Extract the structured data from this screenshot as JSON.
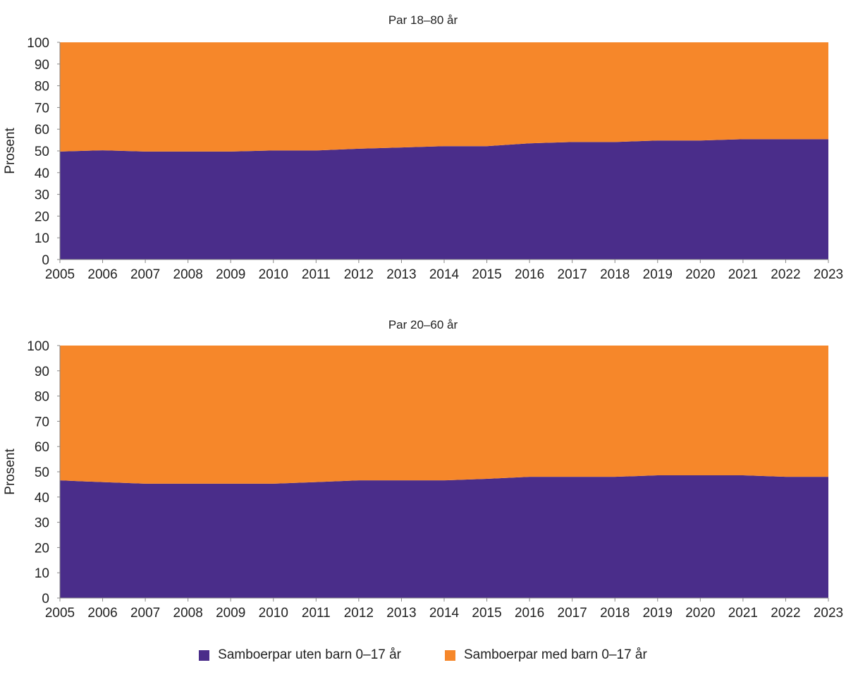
{
  "chart_data": [
    {
      "type": "area",
      "stacked": true,
      "title": "Par 18–80 år",
      "ylabel": "Prosent",
      "xlabel": "",
      "ylim": [
        0,
        100
      ],
      "yticks": [
        0,
        10,
        20,
        30,
        40,
        50,
        60,
        70,
        80,
        90,
        100
      ],
      "categories": [
        "2005",
        "2006",
        "2007",
        "2008",
        "2009",
        "2010",
        "2011",
        "2012",
        "2013",
        "2014",
        "2015",
        "2016",
        "2017",
        "2018",
        "2019",
        "2020",
        "2021",
        "2022",
        "2023"
      ],
      "series": [
        {
          "name": "Samboerpar uten barn 0–17 år",
          "color": "#4a2d8a",
          "values": [
            49.7,
            50.3,
            49.7,
            49.7,
            49.7,
            50.2,
            50.2,
            51.0,
            51.6,
            52.2,
            52.2,
            53.5,
            54.1,
            54.1,
            54.8,
            54.8,
            55.4,
            55.4,
            55.4
          ]
        },
        {
          "name": "Samboerpar med barn 0–17 år",
          "color": "#f6872a",
          "values": [
            50.3,
            49.7,
            50.3,
            50.3,
            50.3,
            49.8,
            49.8,
            49.0,
            48.4,
            47.8,
            47.8,
            46.5,
            45.9,
            45.9,
            45.2,
            45.2,
            44.6,
            44.6,
            44.6
          ]
        }
      ],
      "grid": false
    },
    {
      "type": "area",
      "stacked": true,
      "title": "Par 20–60 år",
      "ylabel": "Prosent",
      "xlabel": "",
      "ylim": [
        0,
        100
      ],
      "yticks": [
        0,
        10,
        20,
        30,
        40,
        50,
        60,
        70,
        80,
        90,
        100
      ],
      "categories": [
        "2005",
        "2006",
        "2007",
        "2008",
        "2009",
        "2010",
        "2011",
        "2012",
        "2013",
        "2014",
        "2015",
        "2016",
        "2017",
        "2018",
        "2019",
        "2020",
        "2021",
        "2022",
        "2023"
      ],
      "series": [
        {
          "name": "Samboerpar uten barn 0–17 år",
          "color": "#4a2d8a",
          "values": [
            46.6,
            45.9,
            45.3,
            45.3,
            45.3,
            45.3,
            45.9,
            46.6,
            46.6,
            46.6,
            47.2,
            48.0,
            48.0,
            48.0,
            48.6,
            48.6,
            48.6,
            48.0,
            48.0
          ]
        },
        {
          "name": "Samboerpar med barn 0–17 år",
          "color": "#f6872a",
          "values": [
            53.4,
            54.1,
            54.7,
            54.7,
            54.7,
            54.7,
            54.1,
            53.4,
            53.4,
            53.4,
            52.8,
            52.0,
            52.0,
            52.0,
            51.4,
            51.4,
            51.4,
            52.0,
            52.0
          ]
        }
      ],
      "grid": false
    }
  ],
  "legend": [
    {
      "label": "Samboerpar uten barn 0–17 år",
      "color": "#4a2d8a"
    },
    {
      "label": "Samboerpar med barn 0–17 år",
      "color": "#f6872a"
    }
  ]
}
